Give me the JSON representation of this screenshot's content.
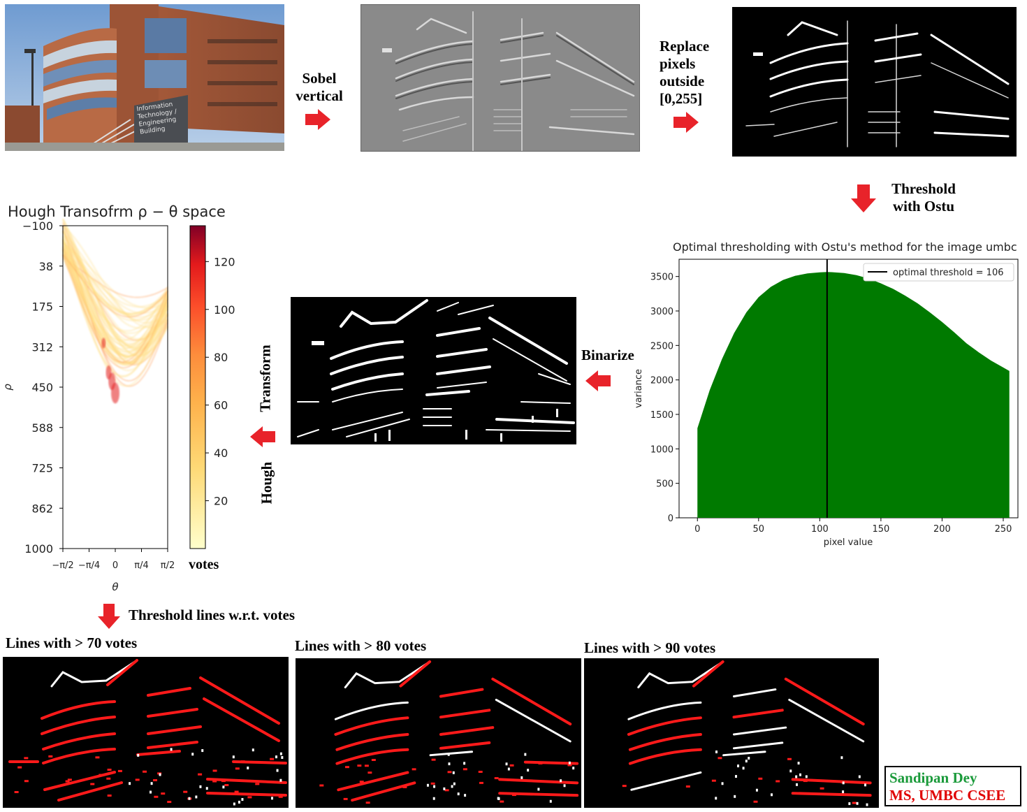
{
  "labels": {
    "sobel": "Sobel\nvertical",
    "replace": "Replace\npixels\noutside\n[0,255]",
    "threshold": "Threshold\nwith Ostu",
    "binarize": "Binarize",
    "hough": "Hough",
    "transform": "Transform",
    "threshold_lines": "Threshold lines w.r.t. votes",
    "lines70": "Lines with > 70 votes",
    "lines80": "Lines with > 80 votes",
    "lines90": "Lines with > 90 votes"
  },
  "credit": {
    "name": "Sandipan Dey",
    "affiliation": "MS, UMBC CSEE",
    "name_color": "#1a9a3a",
    "affiliation_color": "#e00000"
  },
  "photo": {
    "sign_lines": [
      "Information",
      "Technology /",
      "Engineering",
      "Building"
    ]
  },
  "arrow_color": "#e8232a",
  "chart_data": [
    {
      "type": "area",
      "title": "Optimal thresholding with Ostu's method for the image umbc",
      "xlabel": "pixel value",
      "ylabel": "variance",
      "xlim": [
        -15,
        262
      ],
      "ylim": [
        0,
        3750
      ],
      "xticks": [
        0,
        50,
        100,
        150,
        200,
        250
      ],
      "yticks": [
        0,
        500,
        1000,
        1500,
        2000,
        2500,
        3000,
        3500
      ],
      "fill_color": "#007a00",
      "x": [
        0,
        10,
        20,
        30,
        40,
        50,
        60,
        70,
        80,
        90,
        100,
        106,
        110,
        120,
        130,
        140,
        150,
        160,
        170,
        180,
        190,
        200,
        210,
        220,
        230,
        240,
        250,
        255
      ],
      "y": [
        1300,
        1850,
        2300,
        2680,
        2980,
        3200,
        3350,
        3450,
        3510,
        3545,
        3560,
        3565,
        3562,
        3550,
        3520,
        3470,
        3400,
        3320,
        3220,
        3110,
        2980,
        2840,
        2690,
        2530,
        2400,
        2280,
        2180,
        2130
      ],
      "threshold": 106,
      "legend": "optimal threshold = 106",
      "legend_position": "top-right",
      "grid": false
    },
    {
      "type": "heatmap",
      "title": "Hough Transofrm ρ − θ space",
      "xlabel": "θ",
      "ylabel": "ρ",
      "ylim": [
        -100,
        1000
      ],
      "yticks": [
        "−100",
        "38",
        "175",
        "312",
        "450",
        "588",
        "725",
        "862",
        "1000"
      ],
      "xticks": [
        "−π/2",
        "−π/4",
        "0",
        "π/4",
        "π/2"
      ],
      "colorbar_label": "votes",
      "colorbar_ticks": [
        20,
        40,
        60,
        80,
        100,
        120
      ],
      "colorbar_range": [
        0,
        135
      ],
      "colormap": "YlOrRd"
    }
  ]
}
